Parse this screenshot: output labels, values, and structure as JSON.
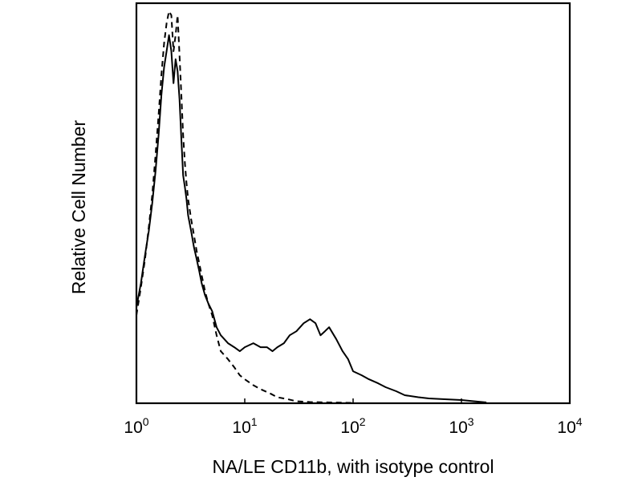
{
  "chart_data": {
    "type": "line",
    "title": "",
    "xlabel": "NA/LE CD11b, with isotype control",
    "ylabel": "Relative Cell Number",
    "x_scale": "log",
    "xlim": [
      1,
      10000
    ],
    "ylim": [
      0,
      100
    ],
    "grid": false,
    "legend": "none",
    "x_ticks": [
      {
        "value": 1,
        "base": "10",
        "exp": "0"
      },
      {
        "value": 10,
        "base": "10",
        "exp": "1"
      },
      {
        "value": 100,
        "base": "10",
        "exp": "2"
      },
      {
        "value": 1000,
        "base": "10",
        "exp": "3"
      },
      {
        "value": 10000,
        "base": "10",
        "exp": "4"
      }
    ],
    "series": [
      {
        "style": "solid",
        "color": "#000000",
        "x": [
          1.0,
          1.1,
          1.2,
          1.3,
          1.4,
          1.5,
          1.6,
          1.7,
          1.8,
          1.9,
          2.0,
          2.1,
          2.2,
          2.3,
          2.4,
          2.5,
          2.6,
          2.7,
          2.8,
          2.9,
          3.0,
          3.2,
          3.4,
          3.6,
          3.8,
          4.0,
          4.3,
          4.6,
          5.0,
          5.5,
          6.0,
          7.0,
          8.0,
          9.0,
          10,
          12,
          14,
          16,
          18,
          20,
          23,
          26,
          30,
          35,
          40,
          45,
          50,
          55,
          60,
          70,
          80,
          90,
          100,
          120,
          140,
          170,
          200,
          250,
          300,
          400,
          500,
          700,
          1000,
          1300,
          1700
        ],
        "y": [
          24,
          30,
          37,
          43,
          50,
          58,
          67,
          77,
          84,
          88,
          92,
          88,
          80,
          86,
          83,
          76,
          66,
          57,
          54,
          51,
          47,
          43,
          39,
          36,
          33,
          30,
          27,
          25,
          23,
          19,
          17,
          15,
          14,
          13,
          14,
          15,
          14,
          14,
          13,
          14,
          15,
          17,
          18,
          20,
          21,
          20,
          17,
          18,
          19,
          16,
          13,
          11,
          8,
          7,
          6,
          5,
          4,
          3,
          2,
          1.5,
          1.2,
          1.0,
          0.8,
          0.5,
          0.2
        ]
      },
      {
        "style": "dashed",
        "color": "#000000",
        "x": [
          1.0,
          1.1,
          1.2,
          1.3,
          1.4,
          1.5,
          1.6,
          1.7,
          1.8,
          1.9,
          2.0,
          2.1,
          2.2,
          2.3,
          2.4,
          2.5,
          2.6,
          2.7,
          2.8,
          2.9,
          3.0,
          3.2,
          3.4,
          3.6,
          3.8,
          4.0,
          4.3,
          4.6,
          5.0,
          5.5,
          6.0,
          7.0,
          8.0,
          9.0,
          10,
          12,
          14,
          17,
          20,
          25,
          30,
          40,
          60,
          100
        ],
        "y": [
          22,
          29,
          36,
          44,
          52,
          62,
          72,
          82,
          90,
          95,
          98,
          97,
          88,
          92,
          97,
          87,
          77,
          67,
          60,
          55,
          51,
          46,
          42,
          38,
          35,
          32,
          28,
          25,
          22,
          17,
          13,
          11,
          9,
          7,
          6,
          4.5,
          3.5,
          2.5,
          1.5,
          1.0,
          0.5,
          0.3,
          0.2,
          0.1
        ]
      }
    ]
  }
}
